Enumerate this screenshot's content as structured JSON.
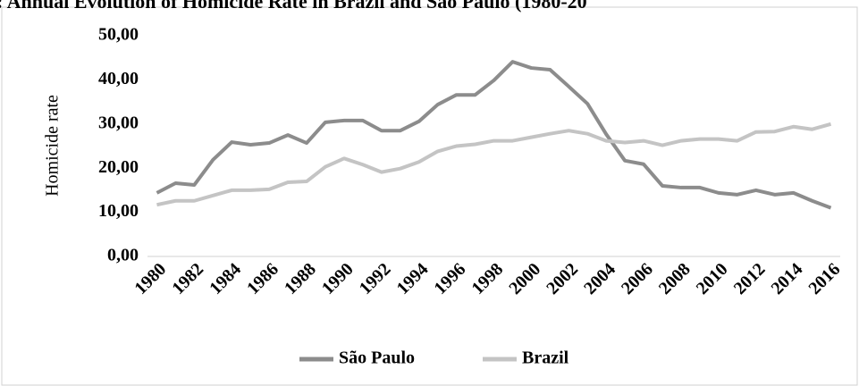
{
  "chart_data": {
    "type": "line",
    "title": ": Annual Evolution of Homicide Rate in Brazil and São Paulo (1980-20",
    "y_label": "Homicide rate",
    "categories": [
      "1980",
      null,
      "1982",
      null,
      "1984",
      null,
      "1986",
      null,
      "1988",
      null,
      "1990",
      null,
      "1992",
      null,
      "1994",
      null,
      "1996",
      null,
      "1998",
      null,
      "2000",
      null,
      "2002",
      null,
      "2004",
      null,
      "2006",
      null,
      "2008",
      null,
      "2010",
      null,
      "2012",
      null,
      "2014",
      null,
      "2016"
    ],
    "series": [
      {
        "name": "São Paulo",
        "color": "#8c8c8c",
        "values": [
          14.4,
          16.6,
          16.2,
          21.9,
          25.9,
          25.3,
          25.7,
          27.5,
          25.7,
          30.4,
          30.8,
          30.8,
          28.5,
          28.5,
          30.6,
          34.4,
          36.6,
          36.6,
          39.9,
          44.1,
          42.7,
          42.3,
          38.5,
          34.6,
          27.7,
          21.7,
          20.9,
          16.0,
          15.6,
          15.6,
          14.4,
          14.0,
          15.0,
          14.0,
          14.4,
          12.6,
          11.0
        ]
      },
      {
        "name": "Brazil",
        "color": "#c4c4c4",
        "values": [
          11.7,
          12.6,
          12.6,
          13.8,
          15.0,
          15.0,
          15.2,
          16.8,
          17.0,
          20.3,
          22.2,
          20.8,
          19.1,
          19.9,
          21.4,
          23.8,
          25.0,
          25.4,
          26.2,
          26.2,
          27.0,
          27.8,
          28.5,
          27.8,
          26.2,
          25.8,
          26.2,
          25.2,
          26.2,
          26.6,
          26.6,
          26.2,
          28.2,
          28.3,
          29.4,
          28.8,
          30.0
        ]
      }
    ],
    "ylim": [
      0,
      50
    ],
    "yticks": [
      {
        "value": 0,
        "label": "0,00"
      },
      {
        "value": 10,
        "label": "10,00"
      },
      {
        "value": 20,
        "label": "20,00"
      },
      {
        "value": 30,
        "label": "30,00"
      },
      {
        "value": 40,
        "label": "40,00"
      },
      {
        "value": 50,
        "label": "50,00"
      }
    ],
    "legend": "bottom"
  }
}
